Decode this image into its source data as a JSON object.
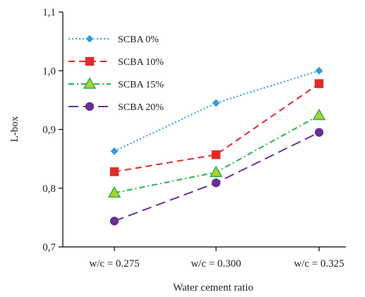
{
  "chart_data": {
    "type": "line",
    "title": "",
    "xlabel": "Water cement ratio",
    "ylabel": "L-box",
    "categories": [
      "w/c = 0.275",
      "w/c = 0.300",
      "w/c = 0.325"
    ],
    "ylim": [
      0.7,
      1.1
    ],
    "yticks": [
      "0,7",
      "0,8",
      "0,9",
      "1,0",
      "1,1"
    ],
    "ytick_values": [
      0.7,
      0.8,
      0.9,
      1.0,
      1.1
    ],
    "grid": false,
    "legend_position": "top-left",
    "series": [
      {
        "name": "SCBA 0%",
        "values": [
          0.863,
          0.945,
          1.0
        ],
        "color": "#2e9fd8",
        "line_style": "dotted",
        "marker": "diamond"
      },
      {
        "name": "SCBA 10%",
        "values": [
          0.828,
          0.857,
          0.978
        ],
        "color": "#e02a2a",
        "line_style": "dashed",
        "marker": "square"
      },
      {
        "name": "SCBA 15%",
        "values": [
          0.792,
          0.827,
          0.924
        ],
        "color": "#25b34a",
        "line_style": "dash-dot",
        "marker": "triangle",
        "marker_fill": "#b5cc2e"
      },
      {
        "name": "SCBA 20%",
        "values": [
          0.744,
          0.809,
          0.895
        ],
        "color": "#6a2f91",
        "line_style": "long-dash",
        "marker": "circle"
      }
    ]
  }
}
